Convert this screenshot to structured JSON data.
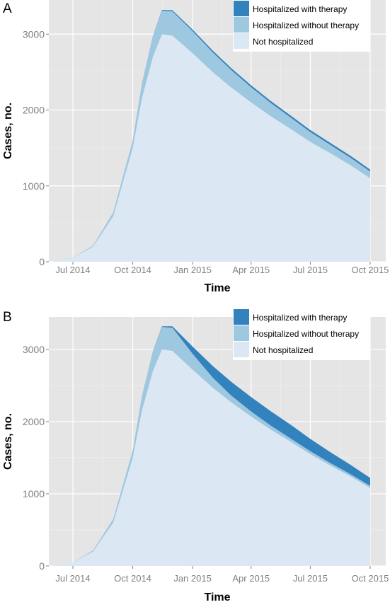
{
  "colors": {
    "panel_bg": "#e5e5e5",
    "grid": "#ffffff",
    "not_hospitalized": "#dbe8f4",
    "without_therapy": "#9ec7e0",
    "with_therapy": "#3182bd",
    "tick_text": "#7f7f7f"
  },
  "chart_data": [
    {
      "panel_label": "A",
      "type": "area",
      "stacked": true,
      "xlabel": "Time",
      "ylabel": "Cases, no.",
      "ylim": [
        0,
        3450
      ],
      "yticks": [
        0,
        1000,
        2000,
        3000
      ],
      "ytick_labels": [
        "0",
        "1000",
        "2000",
        "3000"
      ],
      "xlim": [
        "2014-05-25",
        "2015-10-25"
      ],
      "xticks": [
        "2014-07-01",
        "2014-10-01",
        "2015-01-01",
        "2015-04-01",
        "2015-07-01",
        "2015-10-01"
      ],
      "xtick_labels": [
        "Jul 2014",
        "Oct 2014",
        "Jan 2015",
        "Apr 2015",
        "Jul 2015",
        "Oct 2015"
      ],
      "legend_position": "top-right",
      "x": [
        "2014-06-01",
        "2014-07-01",
        "2014-08-01",
        "2014-09-01",
        "2014-10-01",
        "2014-10-15",
        "2014-11-01",
        "2014-11-15",
        "2014-12-01",
        "2015-01-01",
        "2015-02-01",
        "2015-03-01",
        "2015-04-01",
        "2015-05-01",
        "2015-06-01",
        "2015-07-01",
        "2015-08-01",
        "2015-09-01",
        "2015-10-01"
      ],
      "series": [
        {
          "name": "Not hospitalized",
          "color_key": "not_hospitalized",
          "values": [
            15,
            50,
            200,
            600,
            1500,
            2150,
            2700,
            3000,
            2980,
            2750,
            2500,
            2300,
            2100,
            1920,
            1750,
            1580,
            1430,
            1270,
            1100
          ]
        },
        {
          "name": "Hospitalized without therapy",
          "color_key": "without_therapy",
          "values": [
            0,
            2,
            15,
            50,
            100,
            200,
            270,
            310,
            320,
            290,
            260,
            230,
            200,
            175,
            150,
            130,
            110,
            100,
            90
          ]
        },
        {
          "name": "Hospitalized with therapy",
          "color_key": "with_therapy",
          "values": [
            0,
            0,
            0,
            0,
            0,
            0,
            5,
            10,
            15,
            20,
            23,
            25,
            25,
            25,
            25,
            25,
            25,
            25,
            25
          ]
        }
      ]
    },
    {
      "panel_label": "B",
      "type": "area",
      "stacked": true,
      "xlabel": "Time",
      "ylabel": "Cases, no.",
      "ylim": [
        0,
        3450
      ],
      "yticks": [
        0,
        1000,
        2000,
        3000
      ],
      "ytick_labels": [
        "0",
        "1000",
        "2000",
        "3000"
      ],
      "xlim": [
        "2014-05-25",
        "2015-10-25"
      ],
      "xticks": [
        "2014-07-01",
        "2014-10-01",
        "2015-01-01",
        "2015-04-01",
        "2015-07-01",
        "2015-10-01"
      ],
      "xtick_labels": [
        "Jul 2014",
        "Oct 2014",
        "Jan 2015",
        "Apr 2015",
        "Jul 2015",
        "Oct 2015"
      ],
      "legend_position": "top-right",
      "x": [
        "2014-06-01",
        "2014-07-01",
        "2014-08-01",
        "2014-09-01",
        "2014-10-01",
        "2014-10-15",
        "2014-11-01",
        "2014-11-15",
        "2014-12-01",
        "2015-01-01",
        "2015-02-01",
        "2015-03-01",
        "2015-04-01",
        "2015-05-01",
        "2015-06-01",
        "2015-07-01",
        "2015-08-01",
        "2015-09-01",
        "2015-10-01"
      ],
      "series": [
        {
          "name": "Not hospitalized",
          "color_key": "not_hospitalized",
          "values": [
            15,
            50,
            200,
            600,
            1500,
            2150,
            2700,
            3000,
            2980,
            2720,
            2470,
            2270,
            2070,
            1890,
            1720,
            1550,
            1390,
            1240,
            1080
          ]
        },
        {
          "name": "Hospitalized without therapy",
          "color_key": "without_therapy",
          "values": [
            0,
            2,
            15,
            50,
            100,
            200,
            270,
            310,
            320,
            220,
            140,
            95,
            70,
            55,
            45,
            40,
            35,
            30,
            30
          ]
        },
        {
          "name": "Hospitalized with therapy",
          "color_key": "with_therapy",
          "values": [
            0,
            0,
            0,
            0,
            0,
            0,
            5,
            10,
            20,
            100,
            160,
            190,
            200,
            200,
            190,
            170,
            150,
            130,
            110
          ]
        }
      ]
    }
  ]
}
